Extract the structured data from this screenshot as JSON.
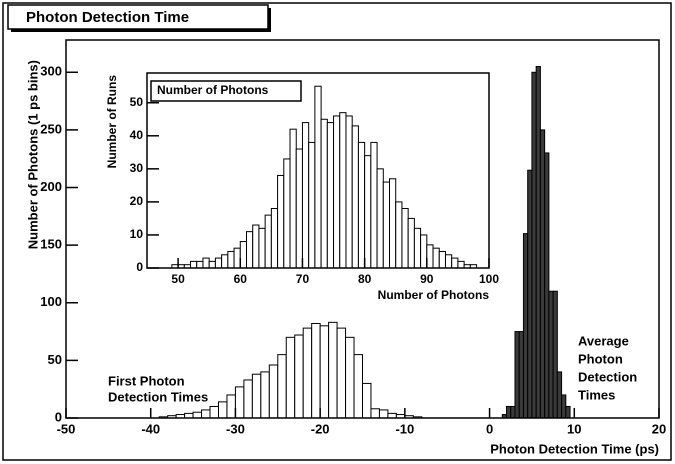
{
  "chart_data": [
    {
      "type": "histogram",
      "title": "Photon Detection Time",
      "xlabel": "Photon Detection Time (ps)",
      "ylabel": "Number of Photons (1 ps bins)",
      "xlim": [
        -50,
        20
      ],
      "ylim": [
        0,
        328
      ],
      "xticks": [
        -50,
        -40,
        -30,
        -20,
        -10,
        0,
        10,
        20
      ],
      "yticks": [
        0,
        50,
        100,
        150,
        200,
        250,
        300
      ],
      "series": [
        {
          "color": "#000000",
          "fill": "#ffffff",
          "bins": [
            -40,
            -39,
            -38,
            -37,
            -36,
            -35,
            -34,
            -33,
            -32,
            -31,
            -30,
            -29,
            -28,
            -27,
            -26,
            -25,
            -24,
            -23,
            -22,
            -21,
            -20,
            -19,
            -18,
            -17,
            -16,
            -15,
            -14,
            -13,
            -12,
            -11,
            -10,
            -9,
            -8
          ],
          "values": [
            0,
            1,
            2,
            3,
            4,
            5,
            7,
            10,
            14,
            20,
            27,
            33,
            38,
            40,
            46,
            55,
            70,
            72,
            78,
            82,
            80,
            83,
            78,
            70,
            55,
            30,
            8,
            7,
            4,
            3,
            2,
            1
          ]
        },
        {
          "color": "#000000",
          "fill": "#3a3a3a",
          "bins": [
            1.5,
            2,
            2.5,
            3,
            3.5,
            4,
            4.5,
            5,
            5.5,
            6,
            6.5,
            7,
            7.5,
            8,
            8.5,
            9,
            9.5
          ],
          "values": [
            3,
            10,
            10,
            75,
            75,
            160,
            215,
            300,
            305,
            250,
            230,
            110,
            110,
            40,
            20,
            10
          ]
        }
      ],
      "annotations": [
        [
          "First Photon",
          "Detection Times"
        ],
        [
          "Average",
          "Photon",
          "Detection",
          "Times"
        ]
      ]
    },
    {
      "type": "histogram",
      "title": "Number of Photons",
      "xlabel": "Number of Photons",
      "ylabel": "Number of Runs",
      "xlim": [
        45,
        100
      ],
      "ylim": [
        0,
        59
      ],
      "xticks": [
        50,
        60,
        70,
        80,
        90,
        100
      ],
      "yticks": [
        0,
        10,
        20,
        30,
        40,
        50
      ],
      "series": [
        {
          "color": "#000000",
          "fill": "#ffffff",
          "bins": [
            47,
            48,
            49,
            50,
            51,
            52,
            53,
            54,
            55,
            56,
            57,
            58,
            59,
            60,
            61,
            62,
            63,
            64,
            65,
            66,
            67,
            68,
            69,
            70,
            71,
            72,
            73,
            74,
            75,
            76,
            77,
            78,
            79,
            80,
            81,
            82,
            83,
            84,
            85,
            86,
            87,
            88,
            89,
            90,
            91,
            92,
            93,
            94,
            95,
            96,
            97,
            98,
            99
          ],
          "values": [
            0,
            0,
            1,
            1,
            1,
            2,
            2,
            3,
            2,
            3,
            4,
            5,
            6,
            8,
            11,
            13,
            12,
            16,
            18,
            28,
            33,
            42,
            36,
            44,
            38,
            55,
            45,
            44,
            46,
            47,
            46,
            43,
            38,
            34,
            38,
            30,
            26,
            27,
            20,
            18,
            15,
            12,
            10,
            7,
            6,
            5,
            4,
            3,
            2,
            1,
            1,
            0
          ]
        }
      ]
    }
  ]
}
